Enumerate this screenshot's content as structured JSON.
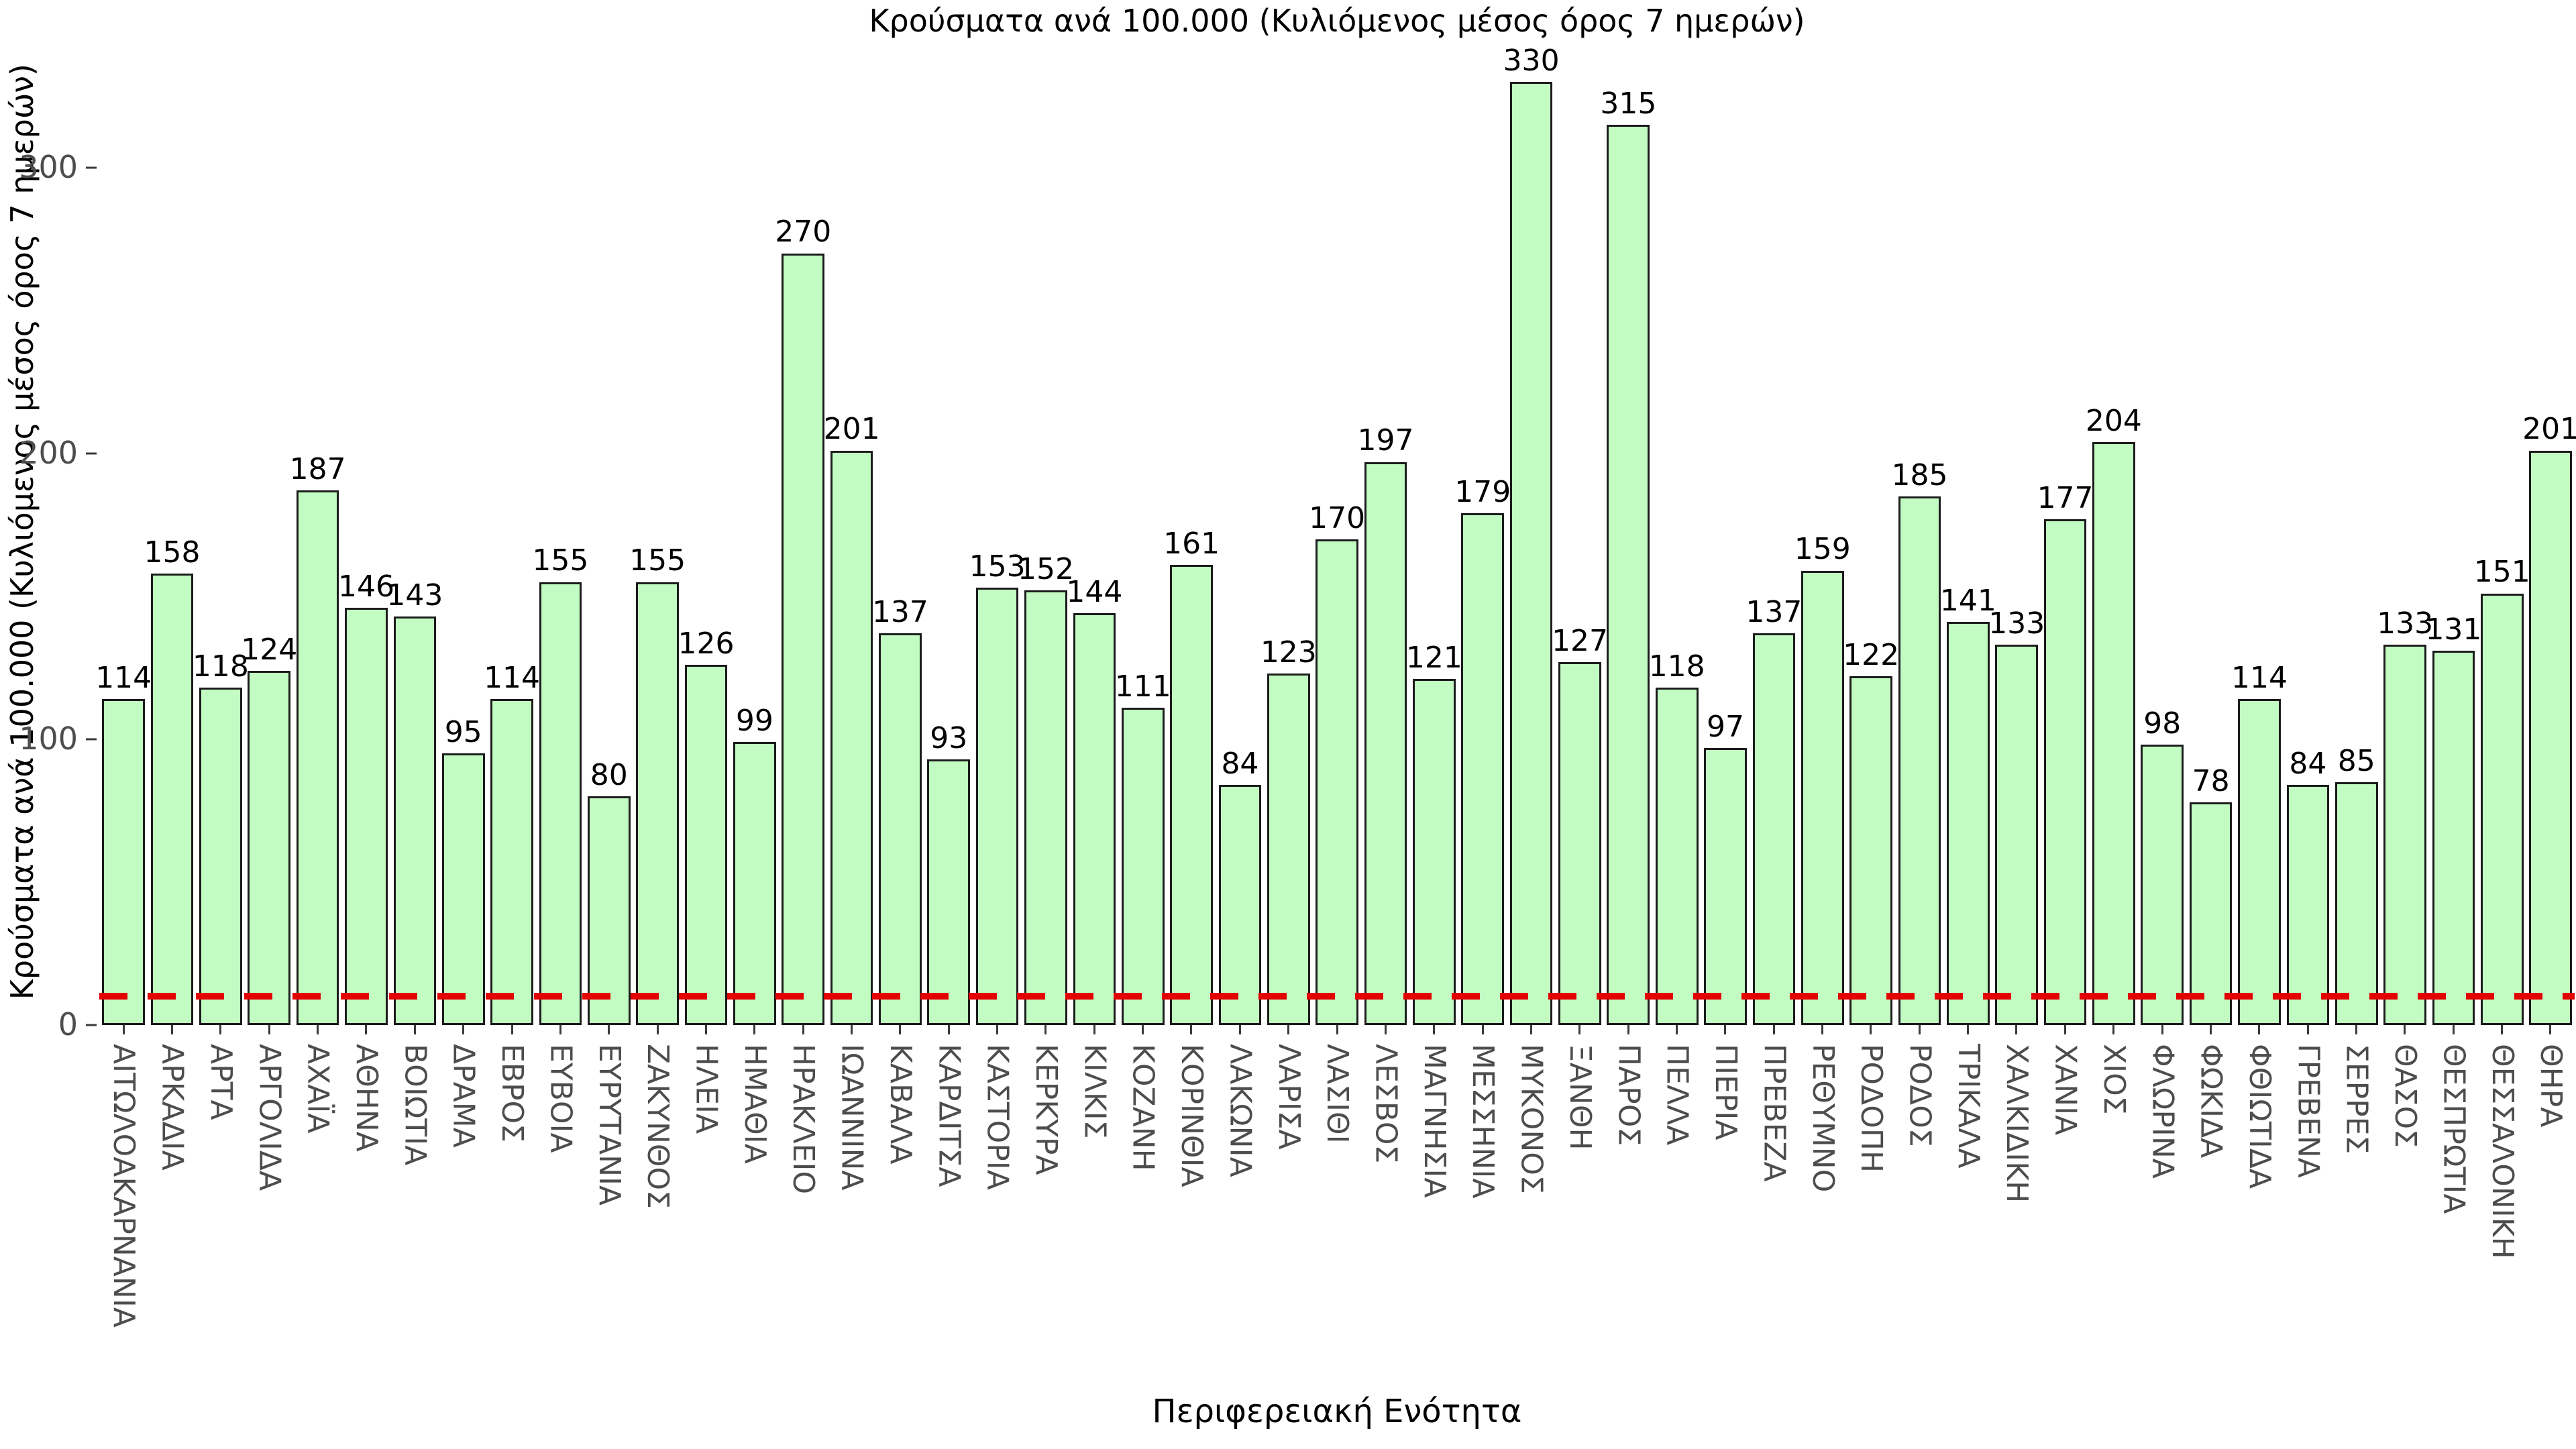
{
  "chart_data": {
    "type": "bar",
    "title": "Κρούσματα ανά 100.000 (Κυλιόμενος μέσος όρος 7 ημερών)",
    "xlabel": "Περιφερειακή Ενότητα",
    "ylabel": "Κρούσματα ανά 100.000 (Κυλιόμενος μέσος όρος 7 ημερών)",
    "categories": [
      "ΑΙΤΩΛΟΑΚΑΡΝΑΝΙΑ",
      "ΑΡΚΑΔΙΑ",
      "ΑΡΤΑ",
      "ΑΡΓΟΛΙΔΑ",
      "ΑΧΑΪΑ",
      "ΑΘΗΝΑ",
      "ΒΟΙΩΤΙΑ",
      "ΔΡΑΜΑ",
      "ΕΒΡΟΣ",
      "ΕΥΒΟΙΑ",
      "ΕΥΡΥΤΑΝΙΑ",
      "ΖΑΚΥΝΘΟΣ",
      "ΗΛΕΙΑ",
      "ΗΜΑΘΙΑ",
      "ΗΡΑΚΛΕΙΟ",
      "ΙΩΑΝΝΙΝΑ",
      "ΚΑΒΑΛΑ",
      "ΚΑΡΔΙΤΣΑ",
      "ΚΑΣΤΟΡΙΑ",
      "ΚΕΡΚΥΡΑ",
      "ΚΙΛΚΙΣ",
      "ΚΟΖΑΝΗ",
      "ΚΟΡΙΝΘΙΑ",
      "ΛΑΚΩΝΙΑ",
      "ΛΑΡΙΣΑ",
      "ΛΑΣΙΘΙ",
      "ΛΕΣΒΟΣ",
      "ΜΑΓΝΗΣΙΑ",
      "ΜΕΣΣΗΝΙΑ",
      "ΜΥΚΟΝΟΣ",
      "ΞΑΝΘΗ",
      "ΠΑΡΟΣ",
      "ΠΕΛΛΑ",
      "ΠΙΕΡΙΑ",
      "ΠΡΕΒΕΖΑ",
      "ΡΕΘΥΜΝΟ",
      "ΡΟΔΟΠΗ",
      "ΡΟΔΟΣ",
      "ΤΡΙΚΑΛΑ",
      "ΧΑΛΚΙΔΙΚΗ",
      "ΧΑΝΙΑ",
      "ΧΙΟΣ",
      "ΦΛΩΡΙΝΑ",
      "ΦΩΚΙΔΑ",
      "ΦΘΙΩΤΙΔΑ",
      "ΓΡΕΒΕΝΑ",
      "ΣΕΡΡΕΣ",
      "ΘΑΣΟΣ",
      "ΘΕΣΠΡΩΤΙΑ",
      "ΘΕΣΣΑΛΟΝΙΚΗ",
      "ΘΗΡΑ"
    ],
    "values": [
      114,
      158,
      118,
      124,
      187,
      146,
      143,
      95,
      114,
      155,
      80,
      155,
      126,
      99,
      270,
      201,
      137,
      93,
      153,
      152,
      144,
      111,
      161,
      84,
      123,
      170,
      197,
      121,
      179,
      330,
      127,
      315,
      118,
      97,
      137,
      159,
      122,
      185,
      141,
      133,
      177,
      204,
      98,
      78,
      114,
      84,
      85,
      133,
      131,
      151,
      201
    ],
    "yticks": [
      0,
      100,
      200,
      300
    ],
    "ylim": [
      0,
      345
    ],
    "grid": false,
    "legend": "none",
    "bar_fill": "#c3fcc3",
    "bar_border": "#1c1c1c",
    "value_label_color": "#000000",
    "tick_label_color": "#4d4d4d",
    "reference_line": {
      "value": 10,
      "color": "#e30000",
      "style": "dashed"
    }
  }
}
